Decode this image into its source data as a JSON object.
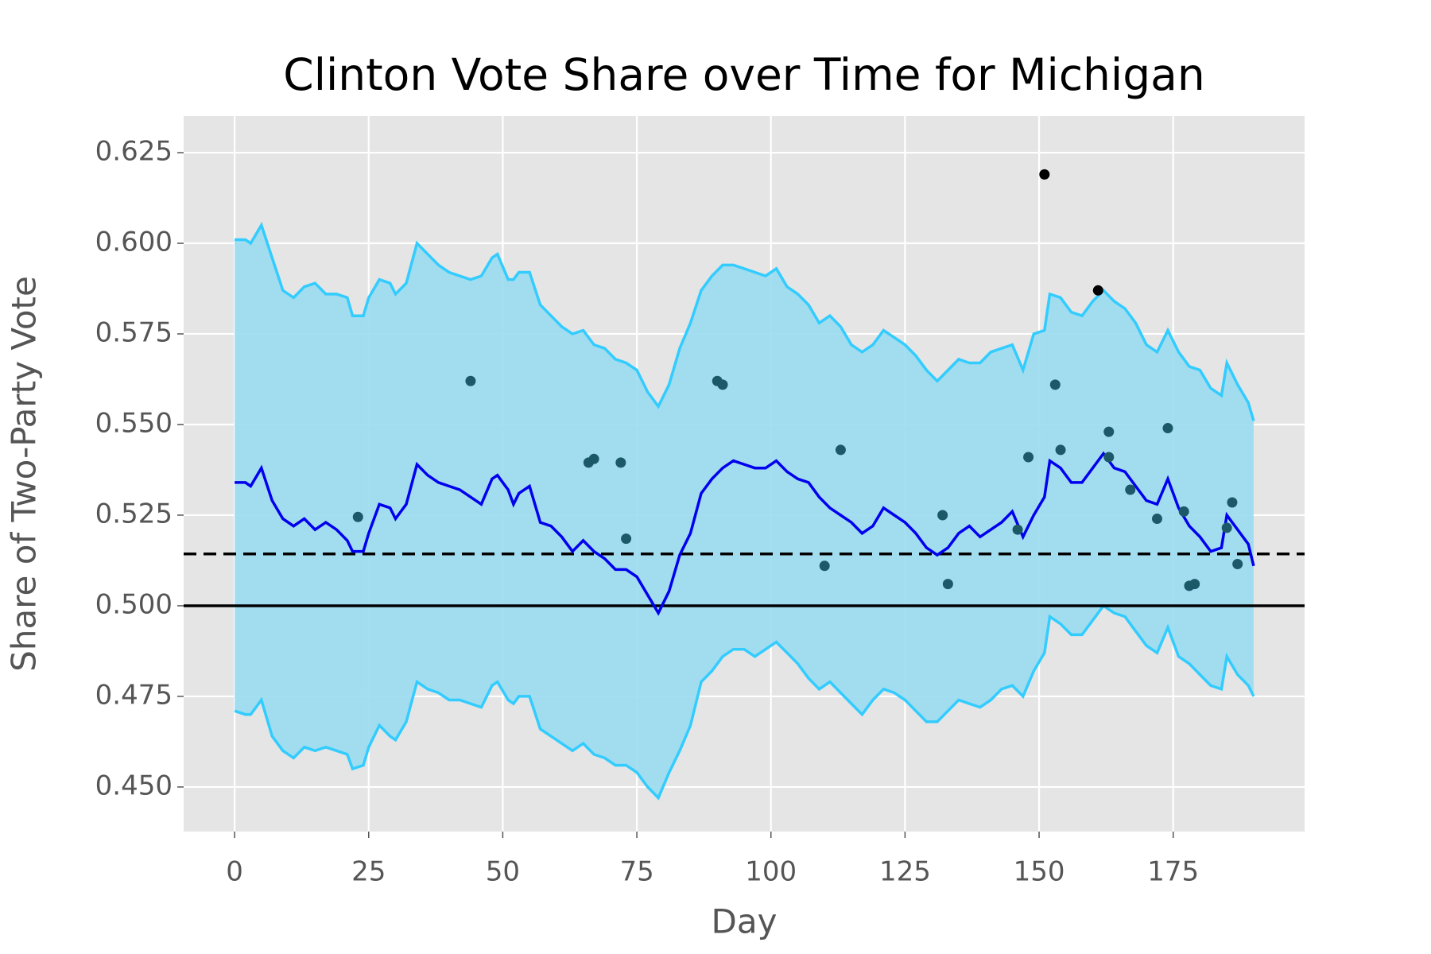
{
  "chart_data": {
    "type": "line",
    "title": "Clinton Vote Share over Time for Michigan",
    "x_label": "Day",
    "y_label": "Share of Two-Party Vote",
    "xlim": [
      -9.5,
      199.5
    ],
    "ylim": [
      0.4377,
      0.6351
    ],
    "xticks": [
      0,
      25,
      50,
      75,
      100,
      125,
      150,
      175
    ],
    "yticks": [
      {
        "value": 0.45,
        "label": "0.450"
      },
      0.475,
      {
        "value": 0.5,
        "label": "0.500"
      },
      0.525,
      {
        "value": 0.55,
        "label": "0.550"
      },
      0.575,
      {
        "value": 0.6,
        "label": "0.600"
      },
      0.625
    ],
    "grid": true,
    "background": "#e5e5e5",
    "x": [
      0,
      2,
      3,
      5,
      7,
      9,
      11,
      13,
      15,
      17,
      19,
      21,
      22,
      24,
      25,
      27,
      29,
      30,
      32,
      34,
      36,
      38,
      40,
      42,
      44,
      46,
      48,
      49,
      51,
      52,
      53,
      55,
      57,
      59,
      61,
      63,
      65,
      67,
      69,
      71,
      73,
      75,
      77,
      79,
      81,
      83,
      85,
      87,
      89,
      91,
      93,
      95,
      97,
      99,
      101,
      103,
      105,
      107,
      109,
      111,
      113,
      115,
      117,
      119,
      121,
      123,
      125,
      127,
      129,
      131,
      133,
      135,
      137,
      139,
      141,
      143,
      145,
      147,
      149,
      151,
      152,
      154,
      156,
      158,
      160,
      162,
      164,
      166,
      168,
      170,
      172,
      174,
      176,
      178,
      180,
      182,
      184,
      185,
      187,
      189,
      190
    ],
    "mean": [
      0.534,
      0.534,
      0.533,
      0.538,
      0.529,
      0.524,
      0.522,
      0.524,
      0.521,
      0.523,
      0.521,
      0.518,
      0.515,
      0.515,
      0.52,
      0.528,
      0.527,
      0.524,
      0.528,
      0.539,
      0.536,
      0.534,
      0.533,
      0.532,
      0.53,
      0.528,
      0.535,
      0.536,
      0.532,
      0.528,
      0.531,
      0.533,
      0.523,
      0.522,
      0.519,
      0.515,
      0.518,
      0.515,
      0.513,
      0.51,
      0.51,
      0.508,
      0.503,
      0.498,
      0.504,
      0.514,
      0.52,
      0.531,
      0.535,
      0.538,
      0.54,
      0.539,
      0.538,
      0.538,
      0.54,
      0.537,
      0.535,
      0.534,
      0.53,
      0.527,
      0.525,
      0.523,
      0.52,
      0.522,
      0.527,
      0.525,
      0.523,
      0.52,
      0.516,
      0.514,
      0.516,
      0.52,
      0.522,
      0.519,
      0.521,
      0.523,
      0.526,
      0.519,
      0.525,
      0.53,
      0.54,
      0.538,
      0.534,
      0.534,
      0.538,
      0.542,
      0.538,
      0.537,
      0.533,
      0.529,
      0.528,
      0.535,
      0.527,
      0.522,
      0.519,
      0.515,
      0.516,
      0.525,
      0.521,
      0.517,
      0.511
    ],
    "upper": [
      0.601,
      0.601,
      0.6,
      0.605,
      0.596,
      0.587,
      0.585,
      0.588,
      0.589,
      0.586,
      0.586,
      0.585,
      0.58,
      0.58,
      0.585,
      0.59,
      0.589,
      0.586,
      0.589,
      0.6,
      0.597,
      0.594,
      0.592,
      0.591,
      0.59,
      0.591,
      0.596,
      0.597,
      0.59,
      0.59,
      0.592,
      0.592,
      0.583,
      0.58,
      0.577,
      0.575,
      0.576,
      0.572,
      0.571,
      0.568,
      0.567,
      0.565,
      0.559,
      0.555,
      0.561,
      0.571,
      0.578,
      0.587,
      0.591,
      0.594,
      0.594,
      0.593,
      0.592,
      0.591,
      0.593,
      0.588,
      0.586,
      0.583,
      0.578,
      0.58,
      0.577,
      0.572,
      0.57,
      0.572,
      0.576,
      0.574,
      0.572,
      0.569,
      0.565,
      0.562,
      0.565,
      0.568,
      0.567,
      0.567,
      0.57,
      0.571,
      0.572,
      0.565,
      0.575,
      0.576,
      0.586,
      0.585,
      0.581,
      0.58,
      0.584,
      0.587,
      0.584,
      0.582,
      0.578,
      0.572,
      0.57,
      0.576,
      0.57,
      0.566,
      0.565,
      0.56,
      0.558,
      0.567,
      0.561,
      0.556,
      0.551
    ],
    "lower": [
      0.471,
      0.47,
      0.47,
      0.474,
      0.464,
      0.46,
      0.458,
      0.461,
      0.46,
      0.461,
      0.46,
      0.459,
      0.455,
      0.456,
      0.461,
      0.467,
      0.464,
      0.463,
      0.468,
      0.479,
      0.477,
      0.476,
      0.474,
      0.474,
      0.473,
      0.472,
      0.478,
      0.479,
      0.474,
      0.473,
      0.475,
      0.475,
      0.466,
      0.464,
      0.462,
      0.46,
      0.462,
      0.459,
      0.458,
      0.456,
      0.456,
      0.454,
      0.45,
      0.447,
      0.454,
      0.46,
      0.467,
      0.479,
      0.482,
      0.486,
      0.488,
      0.488,
      0.486,
      0.488,
      0.49,
      0.487,
      0.484,
      0.48,
      0.477,
      0.479,
      0.476,
      0.473,
      0.47,
      0.474,
      0.477,
      0.476,
      0.474,
      0.471,
      0.468,
      0.468,
      0.471,
      0.474,
      0.473,
      0.472,
      0.474,
      0.477,
      0.478,
      0.475,
      0.482,
      0.487,
      0.497,
      0.495,
      0.492,
      0.492,
      0.496,
      0.5,
      0.498,
      0.497,
      0.493,
      0.489,
      0.487,
      0.494,
      0.486,
      0.484,
      0.481,
      0.478,
      0.477,
      0.486,
      0.481,
      0.478,
      0.475
    ],
    "mean_color": "#0000ee",
    "band_edge_color": "#33ccff",
    "band_fill_color": "#9adcf0",
    "points": {
      "color": "#1b5868",
      "x": [
        44,
        23,
        66,
        67,
        72,
        73,
        90,
        91,
        110,
        113,
        132,
        133,
        146,
        148,
        153,
        154,
        163,
        163,
        167,
        172,
        174,
        177,
        178,
        179,
        185,
        186,
        187
      ],
      "y": [
        0.562,
        0.5245,
        0.5395,
        0.5405,
        0.5395,
        0.5185,
        0.562,
        0.561,
        0.511,
        0.543,
        0.525,
        0.506,
        0.521,
        0.541,
        0.561,
        0.543,
        0.548,
        0.541,
        0.532,
        0.524,
        0.549,
        0.526,
        0.5055,
        0.506,
        0.5215,
        0.5285,
        0.5115
      ]
    },
    "outlier_points": {
      "color": "#000000",
      "x": [
        151,
        161
      ],
      "y": [
        0.619,
        0.587
      ]
    },
    "hlines": [
      {
        "y": 0.5,
        "style": "solid",
        "color": "#000000"
      },
      {
        "y": 0.5143,
        "style": "dashed",
        "color": "#000000"
      }
    ]
  }
}
